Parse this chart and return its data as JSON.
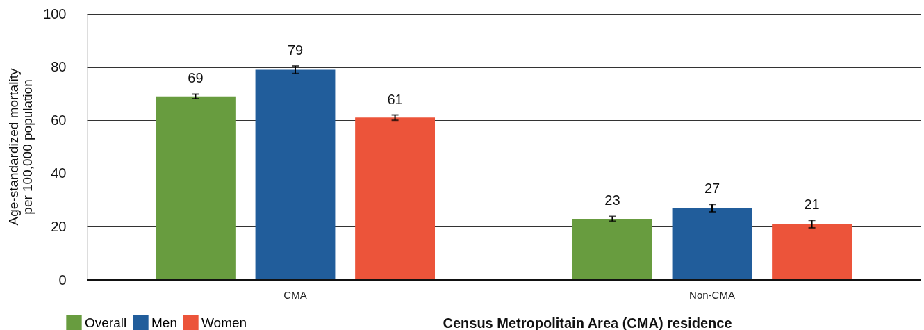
{
  "chart_data": {
    "type": "bar",
    "categories": [
      "CMA",
      "Non-CMA"
    ],
    "series": [
      {
        "name": "Overall",
        "color": "#689c3f",
        "values": [
          69,
          23
        ],
        "errors": [
          0.85,
          0.9
        ]
      },
      {
        "name": "Men",
        "color": "#215d9b",
        "values": [
          79,
          27
        ],
        "errors": [
          1.4,
          1.4
        ]
      },
      {
        "name": "Women",
        "color": "#ec543a",
        "values": [
          61,
          21
        ],
        "errors": [
          1,
          1.4
        ]
      }
    ],
    "xlabel": "Census Metropolitain Area (CMA) residence",
    "ylabel": "Age-standardized mortality per 100,000 population",
    "ylim": [
      0,
      100
    ],
    "yticks": [
      0,
      20,
      40,
      60,
      80,
      100
    ],
    "grid": "y",
    "legend": "bottom left",
    "data_labels": true
  }
}
